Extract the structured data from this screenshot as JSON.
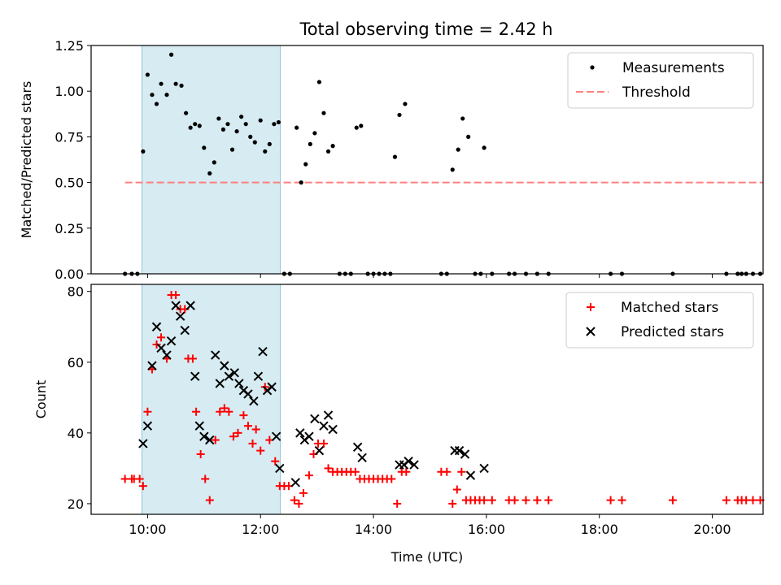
{
  "title": "Total observing time = 2.42 h",
  "colors": {
    "measurement": "#000000",
    "threshold": "#ff7f7f",
    "matched": "#ff0000",
    "predicted": "#000000",
    "span_fill": "#add8e6"
  },
  "chart_data": [
    {
      "type": "scatter",
      "ylabel": "Matched/Predicted stars",
      "xlabel": "",
      "xlim": [
        9.0,
        20.9
      ],
      "ylim": [
        0,
        1.25
      ],
      "yticks": [
        "0.00",
        "0.25",
        "0.50",
        "0.75",
        "1.00",
        "1.25"
      ],
      "ytick_values": [
        0,
        0.25,
        0.5,
        0.75,
        1.0,
        1.25
      ],
      "xtick_values": [
        10,
        12,
        14,
        16,
        18,
        20
      ],
      "legend_position": "top-right",
      "shaded_span": [
        9.9,
        12.35
      ],
      "threshold_value": 0.5,
      "threshold_x": [
        9.6,
        20.9
      ],
      "legend": [
        "Measurements",
        "Threshold"
      ],
      "series": [
        {
          "name": "Measurements",
          "points": [
            [
              9.6,
              0
            ],
            [
              9.72,
              0
            ],
            [
              9.82,
              0
            ],
            [
              9.92,
              0.67
            ],
            [
              10.0,
              1.09
            ],
            [
              10.08,
              0.98
            ],
            [
              10.16,
              0.93
            ],
            [
              10.24,
              1.04
            ],
            [
              10.34,
              0.98
            ],
            [
              10.42,
              1.2
            ],
            [
              10.5,
              1.04
            ],
            [
              10.6,
              1.03
            ],
            [
              10.68,
              0.88
            ],
            [
              10.76,
              0.8
            ],
            [
              10.84,
              0.82
            ],
            [
              10.92,
              0.81
            ],
            [
              11.0,
              0.69
            ],
            [
              11.1,
              0.55
            ],
            [
              11.18,
              0.61
            ],
            [
              11.26,
              0.85
            ],
            [
              11.34,
              0.79
            ],
            [
              11.42,
              0.82
            ],
            [
              11.5,
              0.68
            ],
            [
              11.58,
              0.78
            ],
            [
              11.66,
              0.86
            ],
            [
              11.74,
              0.82
            ],
            [
              11.82,
              0.75
            ],
            [
              11.9,
              0.72
            ],
            [
              12.0,
              0.84
            ],
            [
              12.08,
              0.67
            ],
            [
              12.16,
              0.71
            ],
            [
              12.24,
              0.82
            ],
            [
              12.32,
              0.83
            ],
            [
              12.42,
              0
            ],
            [
              12.52,
              0
            ],
            [
              12.64,
              0.8
            ],
            [
              12.72,
              0.5
            ],
            [
              12.8,
              0.6
            ],
            [
              12.88,
              0.71
            ],
            [
              12.96,
              0.77
            ],
            [
              13.04,
              1.05
            ],
            [
              13.12,
              0.88
            ],
            [
              13.2,
              0.67
            ],
            [
              13.28,
              0.7
            ],
            [
              13.4,
              0
            ],
            [
              13.5,
              0
            ],
            [
              13.6,
              0
            ],
            [
              13.7,
              0.8
            ],
            [
              13.78,
              0.81
            ],
            [
              13.9,
              0
            ],
            [
              14.0,
              0
            ],
            [
              14.1,
              0
            ],
            [
              14.2,
              0
            ],
            [
              14.3,
              0
            ],
            [
              14.38,
              0.64
            ],
            [
              14.46,
              0.87
            ],
            [
              14.56,
              0.93
            ],
            [
              15.2,
              0
            ],
            [
              15.3,
              0
            ],
            [
              15.4,
              0.57
            ],
            [
              15.5,
              0.68
            ],
            [
              15.58,
              0.85
            ],
            [
              15.68,
              0.75
            ],
            [
              15.8,
              0
            ],
            [
              15.9,
              0
            ],
            [
              15.96,
              0.69
            ],
            [
              16.1,
              0
            ],
            [
              16.4,
              0
            ],
            [
              16.5,
              0
            ],
            [
              16.7,
              0
            ],
            [
              16.9,
              0
            ],
            [
              17.1,
              0
            ],
            [
              18.2,
              0
            ],
            [
              18.4,
              0
            ],
            [
              19.3,
              0
            ],
            [
              20.25,
              0
            ],
            [
              20.45,
              0
            ],
            [
              20.52,
              0
            ],
            [
              20.6,
              0
            ],
            [
              20.72,
              0
            ],
            [
              20.85,
              0
            ]
          ]
        }
      ]
    },
    {
      "type": "scatter",
      "ylabel": "Count",
      "xlabel": "Time (UTC)",
      "xlim": [
        9.0,
        20.9
      ],
      "ylim": [
        17,
        82
      ],
      "yticks": [
        "20",
        "40",
        "60",
        "80"
      ],
      "ytick_values": [
        20,
        40,
        60,
        80
      ],
      "xticks": [
        "10:00",
        "12:00",
        "14:00",
        "16:00",
        "18:00",
        "20:00"
      ],
      "xtick_values": [
        10,
        12,
        14,
        16,
        18,
        20
      ],
      "legend_position": "top-right",
      "shaded_span": [
        9.9,
        12.35
      ],
      "legend": [
        "Matched stars",
        "Predicted stars"
      ],
      "series": [
        {
          "name": "Matched stars",
          "points": [
            [
              9.6,
              27
            ],
            [
              9.72,
              27
            ],
            [
              9.76,
              27
            ],
            [
              9.86,
              27
            ],
            [
              9.92,
              25
            ],
            [
              10.0,
              46
            ],
            [
              10.08,
              58
            ],
            [
              10.16,
              65
            ],
            [
              10.24,
              67
            ],
            [
              10.34,
              61
            ],
            [
              10.42,
              79
            ],
            [
              10.5,
              79
            ],
            [
              10.58,
              75
            ],
            [
              10.66,
              75
            ],
            [
              10.72,
              61
            ],
            [
              10.8,
              61
            ],
            [
              10.86,
              46
            ],
            [
              10.94,
              34
            ],
            [
              11.02,
              27
            ],
            [
              11.1,
              21
            ],
            [
              11.2,
              38
            ],
            [
              11.28,
              46
            ],
            [
              11.36,
              47
            ],
            [
              11.44,
              46
            ],
            [
              11.52,
              39
            ],
            [
              11.6,
              40
            ],
            [
              11.7,
              45
            ],
            [
              11.78,
              42
            ],
            [
              11.86,
              37
            ],
            [
              11.92,
              41
            ],
            [
              12.0,
              35
            ],
            [
              12.08,
              53
            ],
            [
              12.16,
              38
            ],
            [
              12.26,
              32
            ],
            [
              12.34,
              25
            ],
            [
              12.42,
              25
            ],
            [
              12.5,
              25
            ],
            [
              12.6,
              21
            ],
            [
              12.68,
              20
            ],
            [
              12.76,
              23
            ],
            [
              12.86,
              28
            ],
            [
              12.94,
              34
            ],
            [
              13.02,
              37
            ],
            [
              13.12,
              37
            ],
            [
              13.2,
              30
            ],
            [
              13.28,
              29
            ],
            [
              13.36,
              29
            ],
            [
              13.44,
              29
            ],
            [
              13.52,
              29
            ],
            [
              13.6,
              29
            ],
            [
              13.68,
              29
            ],
            [
              13.76,
              27
            ],
            [
              13.84,
              27
            ],
            [
              13.92,
              27
            ],
            [
              14.0,
              27
            ],
            [
              14.08,
              27
            ],
            [
              14.16,
              27
            ],
            [
              14.24,
              27
            ],
            [
              14.32,
              27
            ],
            [
              14.42,
              20
            ],
            [
              14.5,
              29
            ],
            [
              14.58,
              29
            ],
            [
              15.2,
              29
            ],
            [
              15.3,
              29
            ],
            [
              15.4,
              20
            ],
            [
              15.48,
              24
            ],
            [
              15.56,
              29
            ],
            [
              15.64,
              21
            ],
            [
              15.72,
              21
            ],
            [
              15.8,
              21
            ],
            [
              15.88,
              21
            ],
            [
              15.96,
              21
            ],
            [
              16.1,
              21
            ],
            [
              16.4,
              21
            ],
            [
              16.5,
              21
            ],
            [
              16.7,
              21
            ],
            [
              16.9,
              21
            ],
            [
              17.1,
              21
            ],
            [
              18.2,
              21
            ],
            [
              18.4,
              21
            ],
            [
              19.3,
              21
            ],
            [
              20.25,
              21
            ],
            [
              20.45,
              21
            ],
            [
              20.52,
              21
            ],
            [
              20.6,
              21
            ],
            [
              20.72,
              21
            ],
            [
              20.85,
              21
            ]
          ]
        },
        {
          "name": "Predicted stars",
          "points": [
            [
              9.92,
              37
            ],
            [
              10.0,
              42
            ],
            [
              10.08,
              59
            ],
            [
              10.16,
              70
            ],
            [
              10.24,
              64
            ],
            [
              10.34,
              62
            ],
            [
              10.42,
              66
            ],
            [
              10.5,
              76
            ],
            [
              10.58,
              73
            ],
            [
              10.66,
              69
            ],
            [
              10.76,
              76
            ],
            [
              10.84,
              56
            ],
            [
              10.92,
              42
            ],
            [
              11.0,
              39
            ],
            [
              11.1,
              38
            ],
            [
              11.2,
              62
            ],
            [
              11.28,
              54
            ],
            [
              11.36,
              59
            ],
            [
              11.44,
              56
            ],
            [
              11.54,
              57
            ],
            [
              11.62,
              54
            ],
            [
              11.7,
              52
            ],
            [
              11.78,
              51
            ],
            [
              11.88,
              49
            ],
            [
              11.96,
              56
            ],
            [
              12.04,
              63
            ],
            [
              12.12,
              52
            ],
            [
              12.2,
              53
            ],
            [
              12.28,
              39
            ],
            [
              12.34,
              30
            ],
            [
              12.62,
              26
            ],
            [
              12.7,
              40
            ],
            [
              12.78,
              38
            ],
            [
              12.86,
              39
            ],
            [
              12.96,
              44
            ],
            [
              13.04,
              35
            ],
            [
              13.12,
              42
            ],
            [
              13.2,
              45
            ],
            [
              13.28,
              41
            ],
            [
              13.72,
              36
            ],
            [
              13.8,
              33
            ],
            [
              14.46,
              31
            ],
            [
              14.54,
              31
            ],
            [
              14.62,
              32
            ],
            [
              14.72,
              31
            ],
            [
              15.44,
              35
            ],
            [
              15.52,
              35
            ],
            [
              15.62,
              34
            ],
            [
              15.72,
              28
            ],
            [
              15.96,
              30
            ]
          ]
        }
      ]
    }
  ]
}
